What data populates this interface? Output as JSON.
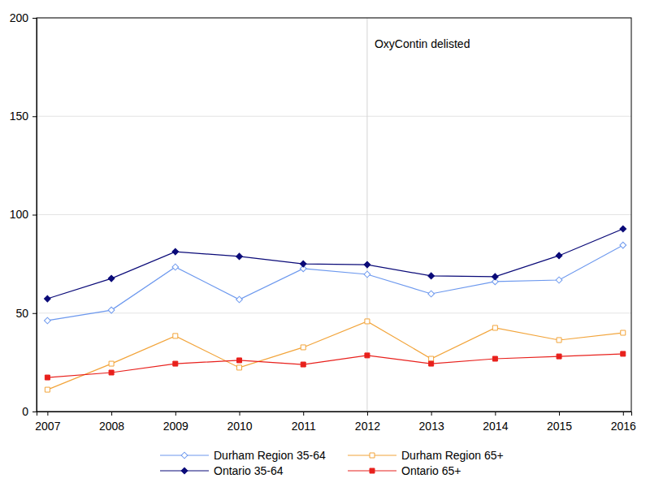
{
  "chart_data": {
    "type": "line",
    "x": [
      2007,
      2008,
      2009,
      2010,
      2011,
      2012,
      2013,
      2014,
      2015,
      2016
    ],
    "xlim": [
      2006.83,
      2016.13
    ],
    "xticks": [
      2007,
      2008,
      2009,
      2010,
      2011,
      2012,
      2013,
      2014,
      2015,
      2016
    ],
    "ylim": [
      0,
      200
    ],
    "yticks": [
      0,
      50,
      100,
      150,
      200
    ],
    "grid": true,
    "legend": "bottom",
    "annotations": [
      {
        "x": 2012,
        "text": "OxyContin delisted"
      }
    ],
    "series": [
      {
        "name": "Durham Region 35-64",
        "color": "#6c98ee",
        "marker": "diamond-open",
        "line_style": "solid",
        "values": [
          46.2,
          51.5,
          73.4,
          56.9,
          72.6,
          69.7,
          59.8,
          66.0,
          66.8,
          84.5
        ]
      },
      {
        "name": "Durham Region 65+",
        "color": "#f2a43a",
        "marker": "square-open",
        "line_style": "solid",
        "values": [
          11.1,
          24.3,
          38.4,
          22.3,
          32.6,
          45.8,
          26.8,
          42.5,
          36.3,
          40.0
        ]
      },
      {
        "name": "Ontario 35-64",
        "color": "#0a0a78",
        "marker": "diamond",
        "line_style": "solid",
        "values": [
          57.3,
          67.6,
          81.2,
          78.8,
          75.0,
          74.6,
          68.9,
          68.5,
          79.2,
          92.8
        ]
      },
      {
        "name": "Ontario 65+",
        "color": "#e8201c",
        "marker": "square",
        "line_style": "solid",
        "values": [
          17.3,
          19.8,
          24.3,
          26.0,
          23.9,
          28.5,
          24.3,
          26.8,
          28.0,
          29.3
        ]
      }
    ]
  }
}
